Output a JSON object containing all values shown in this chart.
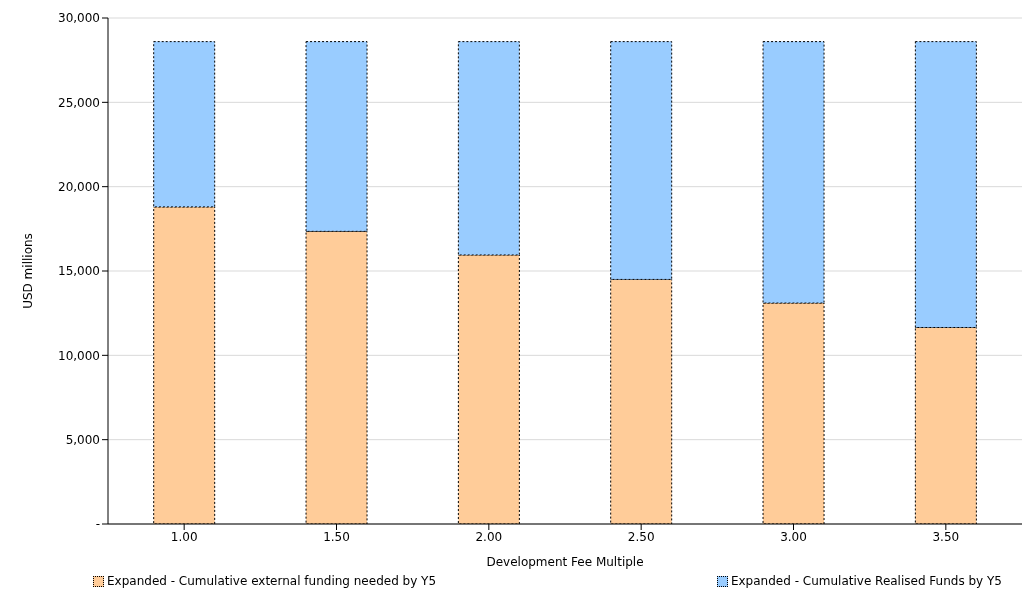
{
  "chart_data": {
    "type": "bar",
    "stacked": true,
    "xlabel": "Development Fee Multiple",
    "ylabel": "USD millions",
    "categories": [
      "1.00",
      "1.50",
      "2.00",
      "2.50",
      "3.00",
      "3.50"
    ],
    "series": [
      {
        "name": "Expanded - Cumulative external funding needed by Y5",
        "color": "#ffcc99",
        "values": [
          18800,
          17350,
          15950,
          14500,
          13100,
          11650
        ]
      },
      {
        "name": "Expanded - Cumulative Realised Funds by Y5",
        "color": "#99ccff",
        "values": [
          9800,
          11250,
          12650,
          14100,
          15500,
          16950
        ]
      }
    ],
    "ylim": [
      0,
      30000
    ],
    "yticks": [
      {
        "value": 0,
        "label": "-"
      },
      {
        "value": 5000,
        "label": "5,000"
      },
      {
        "value": 10000,
        "label": "10,000"
      },
      {
        "value": 15000,
        "label": "15,000"
      },
      {
        "value": 20000,
        "label": "20,000"
      },
      {
        "value": 25000,
        "label": "25,000"
      },
      {
        "value": 30000,
        "label": "30,000"
      }
    ],
    "grid": "y",
    "legend": "bottom"
  }
}
